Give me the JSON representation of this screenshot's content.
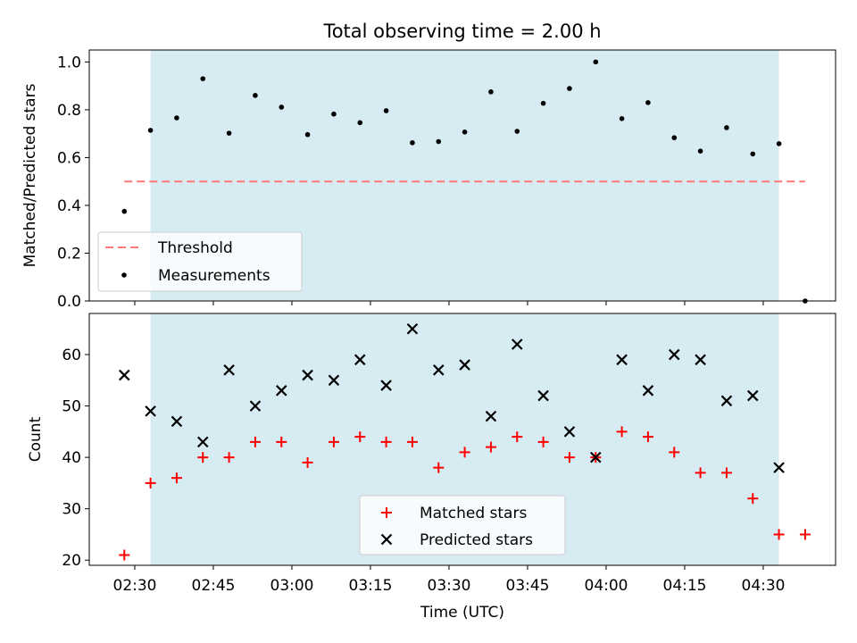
{
  "chart_data": [
    {
      "type": "scatter",
      "title": "Total observing time = 2.00 h",
      "xlabel": "",
      "ylabel": "Matched/Predicted stars",
      "ylim": [
        0,
        1.05
      ],
      "yticks": [
        "0.0",
        "0.2",
        "0.4",
        "0.6",
        "0.8",
        "1.0"
      ],
      "shaded_span": [
        "02:33",
        "04:33"
      ],
      "threshold": {
        "name": "Threshold",
        "value": 0.5,
        "x_range": [
          "02:28",
          "04:38"
        ],
        "color": "#ff7777"
      },
      "series": [
        {
          "name": "Measurements",
          "marker": "dot",
          "color": "#000000",
          "x": [
            "02:28",
            "02:33",
            "02:38",
            "02:43",
            "02:48",
            "02:53",
            "02:58",
            "03:03",
            "03:08",
            "03:13",
            "03:18",
            "03:23",
            "03:28",
            "03:33",
            "03:38",
            "03:43",
            "03:48",
            "03:53",
            "03:58",
            "04:03",
            "04:08",
            "04:13",
            "04:18",
            "04:23",
            "04:28",
            "04:33",
            "04:38"
          ],
          "y": [
            0.375,
            0.714,
            0.766,
            0.93,
            0.702,
            0.86,
            0.811,
            0.696,
            0.782,
            0.746,
            0.796,
            0.662,
            0.667,
            0.707,
            0.875,
            0.71,
            0.827,
            0.889,
            1.0,
            0.763,
            0.83,
            0.683,
            0.627,
            0.725,
            0.615,
            0.658,
            0.0
          ]
        }
      ],
      "legend_placement": "lower-left"
    },
    {
      "type": "scatter",
      "title": "",
      "xlabel": "Time (UTC)",
      "ylabel": "Count",
      "ylim": [
        19,
        68
      ],
      "yticks": [
        "20",
        "30",
        "40",
        "50",
        "60"
      ],
      "xticks": [
        "02:30",
        "02:45",
        "03:00",
        "03:15",
        "03:30",
        "03:45",
        "04:00",
        "04:15",
        "04:30"
      ],
      "shaded_span": [
        "02:33",
        "04:33"
      ],
      "series": [
        {
          "name": "Matched stars",
          "marker": "plus",
          "color": "#ff0000",
          "x": [
            "02:28",
            "02:33",
            "02:38",
            "02:43",
            "02:48",
            "02:53",
            "02:58",
            "03:03",
            "03:08",
            "03:13",
            "03:18",
            "03:23",
            "03:28",
            "03:33",
            "03:38",
            "03:43",
            "03:48",
            "03:53",
            "03:58",
            "04:03",
            "04:08",
            "04:13",
            "04:18",
            "04:23",
            "04:28",
            "04:33",
            "04:38"
          ],
          "y": [
            21,
            35,
            36,
            40,
            40,
            43,
            43,
            39,
            43,
            44,
            43,
            43,
            38,
            41,
            42,
            44,
            43,
            40,
            40,
            45,
            44,
            41,
            37,
            37,
            32,
            25,
            25
          ]
        },
        {
          "name": "Predicted stars",
          "marker": "x",
          "color": "#000000",
          "x": [
            "02:28",
            "02:33",
            "02:38",
            "02:43",
            "02:48",
            "02:53",
            "02:58",
            "03:03",
            "03:08",
            "03:13",
            "03:18",
            "03:23",
            "03:28",
            "03:33",
            "03:38",
            "03:43",
            "03:48",
            "03:53",
            "03:58",
            "04:03",
            "04:08",
            "04:13",
            "04:18",
            "04:23",
            "04:28",
            "04:33"
          ],
          "y": [
            56,
            49,
            47,
            43,
            57,
            50,
            53,
            56,
            55,
            59,
            54,
            65,
            57,
            58,
            48,
            62,
            52,
            45,
            40,
            59,
            53,
            60,
            59,
            51,
            52,
            38
          ]
        }
      ],
      "legend_placement": "lower-center"
    }
  ],
  "colors": {
    "shade": "#add8e6",
    "axis": "#000000"
  }
}
